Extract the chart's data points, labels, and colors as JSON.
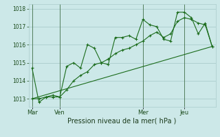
{
  "bg_color": "#cce8e8",
  "grid_color": "#aacccc",
  "line_color": "#1a6b1a",
  "marker_color": "#1a6b1a",
  "title": "Pression niveau de la mer( hPa )",
  "xlabel_ticks": [
    "Mar",
    "Ven",
    "Mer",
    "Jeu"
  ],
  "xlabel_tick_positions": [
    0,
    4,
    16,
    22
  ],
  "ylim": [
    1012.55,
    1018.25
  ],
  "yticks": [
    1013,
    1014,
    1015,
    1016,
    1017,
    1018
  ],
  "series1_x": [
    0,
    1,
    2,
    3,
    4,
    5,
    6,
    7,
    8,
    9,
    10,
    11,
    12,
    13,
    14,
    15,
    16,
    17,
    18,
    19,
    20,
    21,
    22,
    23,
    24,
    25,
    26
  ],
  "series1_y": [
    1014.7,
    1012.8,
    1013.1,
    1013.1,
    1013.1,
    1014.8,
    1015.0,
    1014.7,
    1016.0,
    1015.8,
    1015.0,
    1014.9,
    1016.4,
    1016.4,
    1016.5,
    1016.3,
    1017.4,
    1017.1,
    1017.0,
    1016.3,
    1016.2,
    1017.8,
    1017.8,
    1017.5,
    1016.6,
    1017.2,
    1015.9
  ],
  "series2_x": [
    0,
    1,
    2,
    3,
    4,
    5,
    6,
    7,
    8,
    9,
    10,
    11,
    12,
    13,
    14,
    15,
    16,
    17,
    18,
    19,
    20,
    21,
    22,
    23,
    24,
    25,
    26
  ],
  "series2_y": [
    1013.0,
    1013.0,
    1013.1,
    1013.2,
    1013.1,
    1013.5,
    1014.0,
    1014.3,
    1014.5,
    1014.9,
    1015.0,
    1015.2,
    1015.5,
    1015.7,
    1015.8,
    1016.0,
    1016.2,
    1016.5,
    1016.7,
    1016.4,
    1016.6,
    1017.3,
    1017.5,
    1017.4,
    1017.2,
    1017.1,
    1015.9
  ],
  "trend_x": [
    0,
    26
  ],
  "trend_y": [
    1013.0,
    1015.9
  ],
  "vline_positions": [
    0,
    4,
    16,
    22
  ],
  "xlim": [
    -0.5,
    26.5
  ]
}
